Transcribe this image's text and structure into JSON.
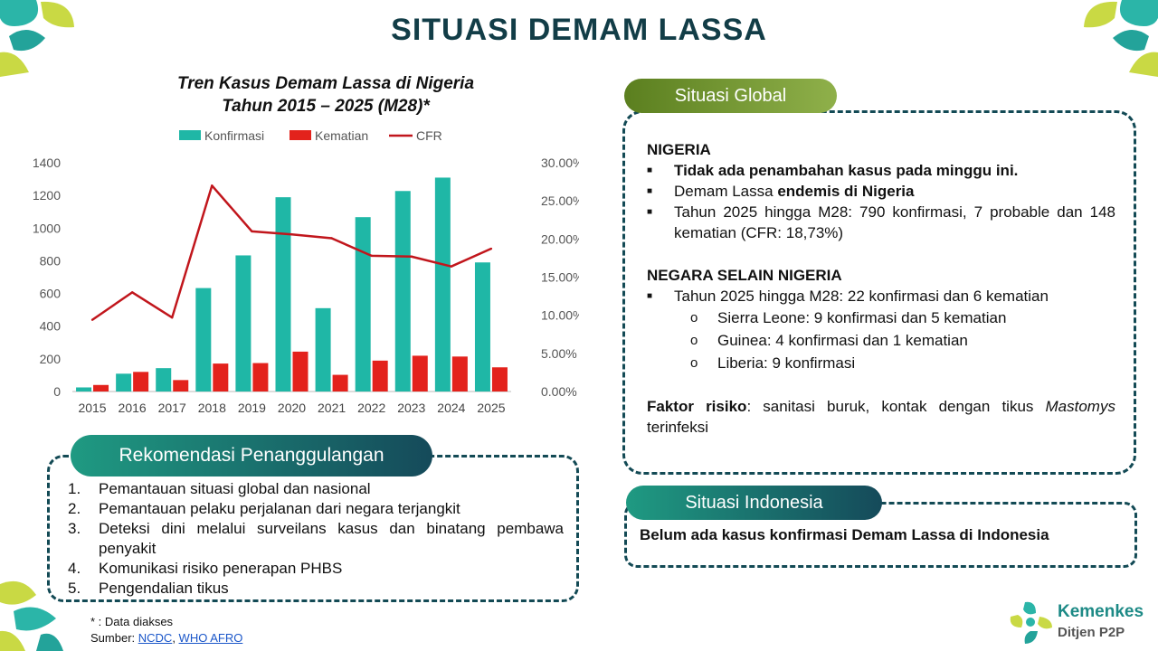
{
  "page": {
    "title": "SITUASI DEMAM LASSA"
  },
  "chart_title": {
    "line1": "Tren Kasus Demam Lassa di Nigeria",
    "line2": "Tahun 2015 – 2025 (M28)*"
  },
  "chart_data": {
    "type": "bar",
    "title": "Tren Kasus Demam Lassa di Nigeria Tahun 2015 – 2025 (M28)*",
    "categories": [
      "2015",
      "2016",
      "2017",
      "2018",
      "2019",
      "2020",
      "2021",
      "2022",
      "2023",
      "2024",
      "2025"
    ],
    "series": [
      {
        "name": "Konfirmasi",
        "type": "bar",
        "axis": "left",
        "color": "#1fb7a6",
        "values": [
          25,
          109,
          143,
          633,
          833,
          1189,
          510,
          1067,
          1227,
          1309,
          790
        ]
      },
      {
        "name": "Kematian",
        "type": "bar",
        "axis": "left",
        "color": "#e3221c",
        "values": [
          40,
          120,
          70,
          171,
          174,
          244,
          102,
          189,
          219,
          214,
          148
        ]
      },
      {
        "name": "CFR",
        "type": "line",
        "axis": "right",
        "color": "#c1161c",
        "values": [
          9.4,
          13.0,
          9.7,
          27.0,
          21.0,
          20.6,
          20.1,
          17.8,
          17.7,
          16.4,
          18.73
        ]
      }
    ],
    "ylim": [
      0,
      1400
    ],
    "yticks": [
      "0",
      "200",
      "400",
      "600",
      "800",
      "1000",
      "1200",
      "1400"
    ],
    "y2lim": [
      0,
      30
    ],
    "y2ticks": [
      "0.00%",
      "5.00%",
      "10.00%",
      "15.00%",
      "20.00%",
      "25.00%",
      "30.00%"
    ],
    "legend": "top",
    "grid": false
  },
  "global": {
    "label": "Situasi Global",
    "nigeria_heading": "NIGERIA",
    "b1": "Tidak ada penambahan kasus pada minggu ini.",
    "b2_pre": "Demam Lassa ",
    "b2_bold": "endemis di Nigeria",
    "b3": "Tahun 2025 hingga M28: 790 konfirmasi, 7 probable dan 148 kematian (CFR: 18,73%)",
    "other_heading": "NEGARA SELAIN NIGERIA",
    "o1": "Tahun 2025 hingga M28: 22 konfirmasi dan 6 kematian",
    "sub1": "Sierra Leone: 9 konfirmasi dan 5 kematian",
    "sub2": "Guinea: 4 konfirmasi dan 1 kematian",
    "sub3": "Liberia: 9 konfirmasi",
    "risk_label": "Faktor risiko",
    "risk_text": ": sanitasi buruk, kontak dengan tikus ",
    "risk_italic": "Mastomys",
    "risk_end": " terinfeksi",
    "bullet_glyph": "■",
    "sub_glyph": "o"
  },
  "indonesia": {
    "label": "Situasi Indonesia",
    "text": "Belum ada kasus konfirmasi Demam Lassa di Indonesia"
  },
  "rekomendasi": {
    "label": "Rekomendasi Penanggulangan",
    "items": [
      {
        "num": "1.",
        "text": "Pemantauan situasi global dan nasional"
      },
      {
        "num": "2.",
        "text": "Pemantauan pelaku perjalanan dari negara terjangkit"
      },
      {
        "num": "3.",
        "text": "Deteksi dini melalui surveilans kasus dan binatang pembawa penyakit"
      },
      {
        "num": "4.",
        "text": "Komunikasi risiko penerapan PHBS"
      },
      {
        "num": "5.",
        "text": "Pengendalian tikus"
      }
    ]
  },
  "footer": {
    "note": "* : Data diakses",
    "source_label": "Sumber: ",
    "link1": "NCDC",
    "sep": ", ",
    "link2": "WHO AFRO"
  },
  "logo": {
    "name": "Kemenkes",
    "sub": "Ditjen P2P"
  }
}
